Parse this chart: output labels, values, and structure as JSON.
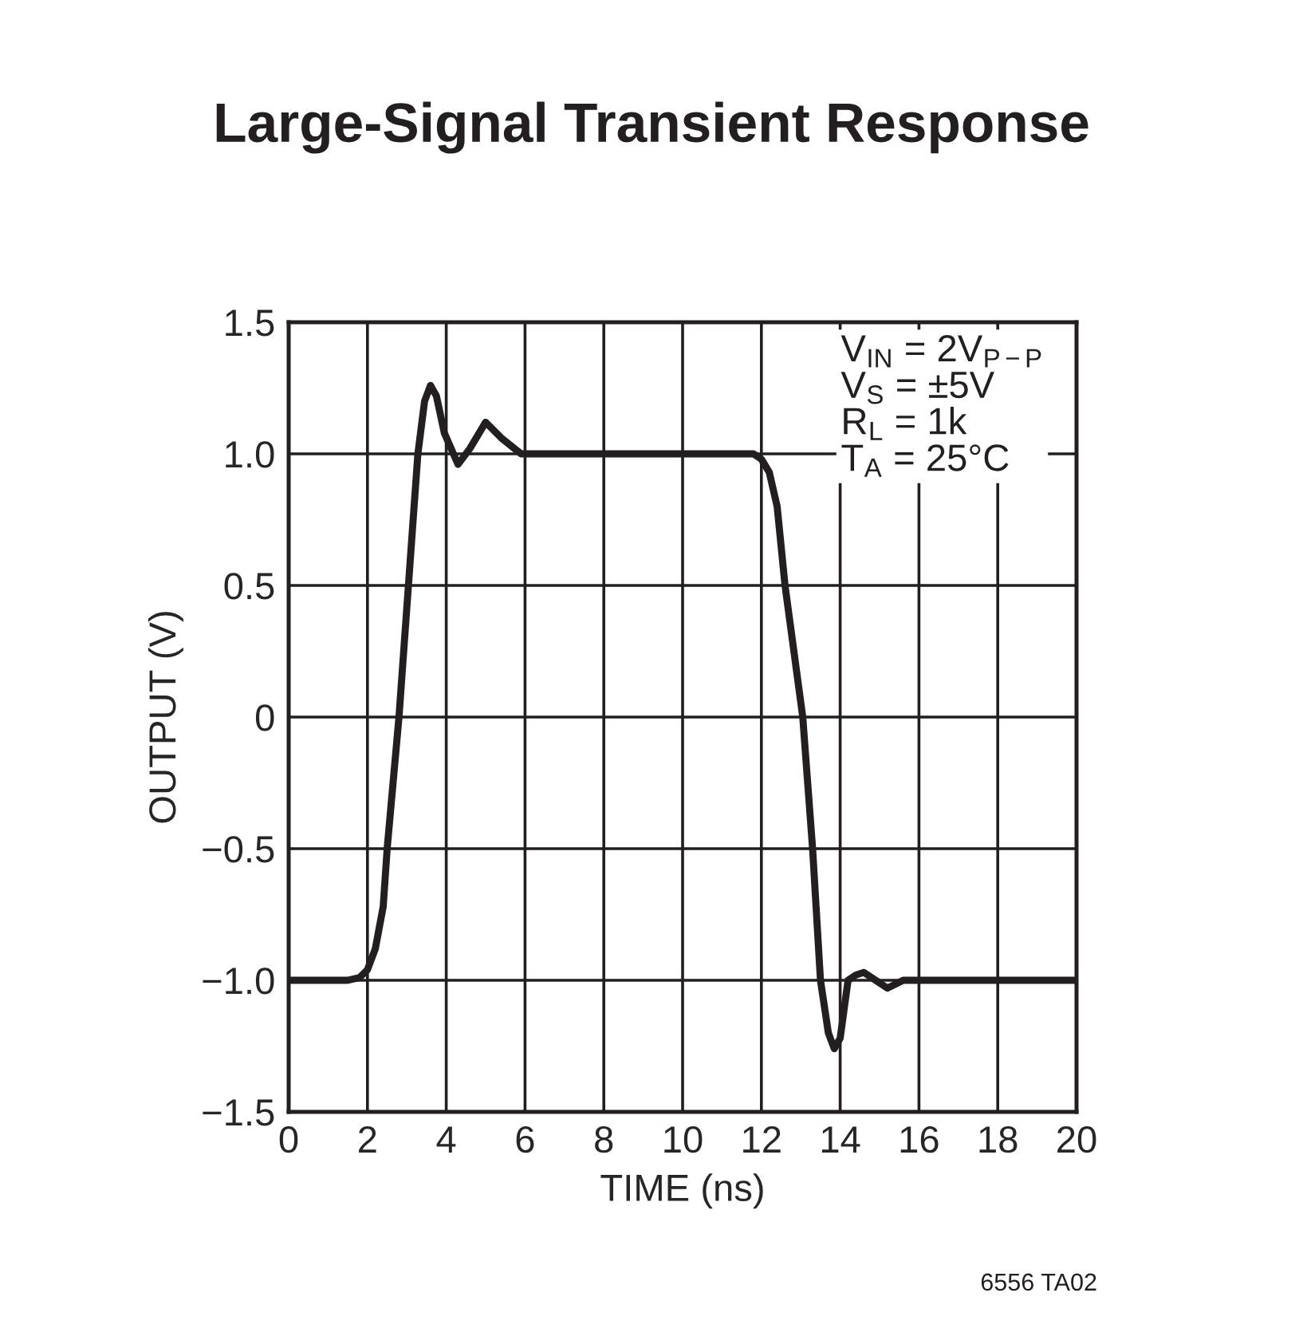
{
  "chart_data": {
    "type": "line",
    "title": "Large-Signal Transient Response",
    "xlabel": "TIME (ns)",
    "ylabel": "OUTPUT (V)",
    "x": [
      0,
      1,
      1.5,
      1.8,
      2,
      2.2,
      2.4,
      2.5,
      2.8,
      3.04,
      3.28,
      3.45,
      3.6,
      3.75,
      3.95,
      4.3,
      4.6,
      5.0,
      5.4,
      5.9,
      7,
      9,
      11,
      11.8,
      12.0,
      12.2,
      12.4,
      12.6,
      13.05,
      13.3,
      13.5,
      13.7,
      13.85,
      14.0,
      14.2,
      14.4,
      14.6,
      14.9,
      15.2,
      15.6,
      16,
      18,
      20
    ],
    "series": [
      {
        "color": "#231f20",
        "values": [
          -1.0,
          -1.0,
          -1.0,
          -0.99,
          -0.96,
          -0.88,
          -0.72,
          -0.5,
          0.0,
          0.5,
          1.0,
          1.2,
          1.26,
          1.22,
          1.08,
          0.96,
          1.02,
          1.12,
          1.06,
          1.0,
          1.0,
          1.0,
          1.0,
          1.0,
          0.98,
          0.93,
          0.8,
          0.5,
          0.0,
          -0.5,
          -1.0,
          -1.2,
          -1.26,
          -1.22,
          -1.0,
          -0.98,
          -0.97,
          -1.0,
          -1.03,
          -1.0,
          -1.0,
          -1.0,
          -1.0
        ]
      }
    ],
    "xlim": [
      0,
      20
    ],
    "xticks": [
      0,
      2,
      4,
      6,
      8,
      10,
      12,
      14,
      16,
      18,
      20
    ],
    "ylim": [
      -1.5,
      1.5
    ],
    "yticks": [
      {
        "value": -1.5,
        "label": "−1.5"
      },
      {
        "value": -1.0,
        "label": "−1.0"
      },
      {
        "value": -0.5,
        "label": "−0.5"
      },
      0,
      0.5,
      {
        "value": 1.0,
        "label": "1.0"
      },
      1.5
    ],
    "grid": true,
    "line_style": "solid",
    "marker": "none",
    "annotations": [
      "V$_{IN}$ = 2V$_{P−P}$\nV$_{S}$ = ±5V\nR$_{L}$ = 1k\nT$_{A}$ = 25°C",
      "6556 TA02"
    ]
  }
}
